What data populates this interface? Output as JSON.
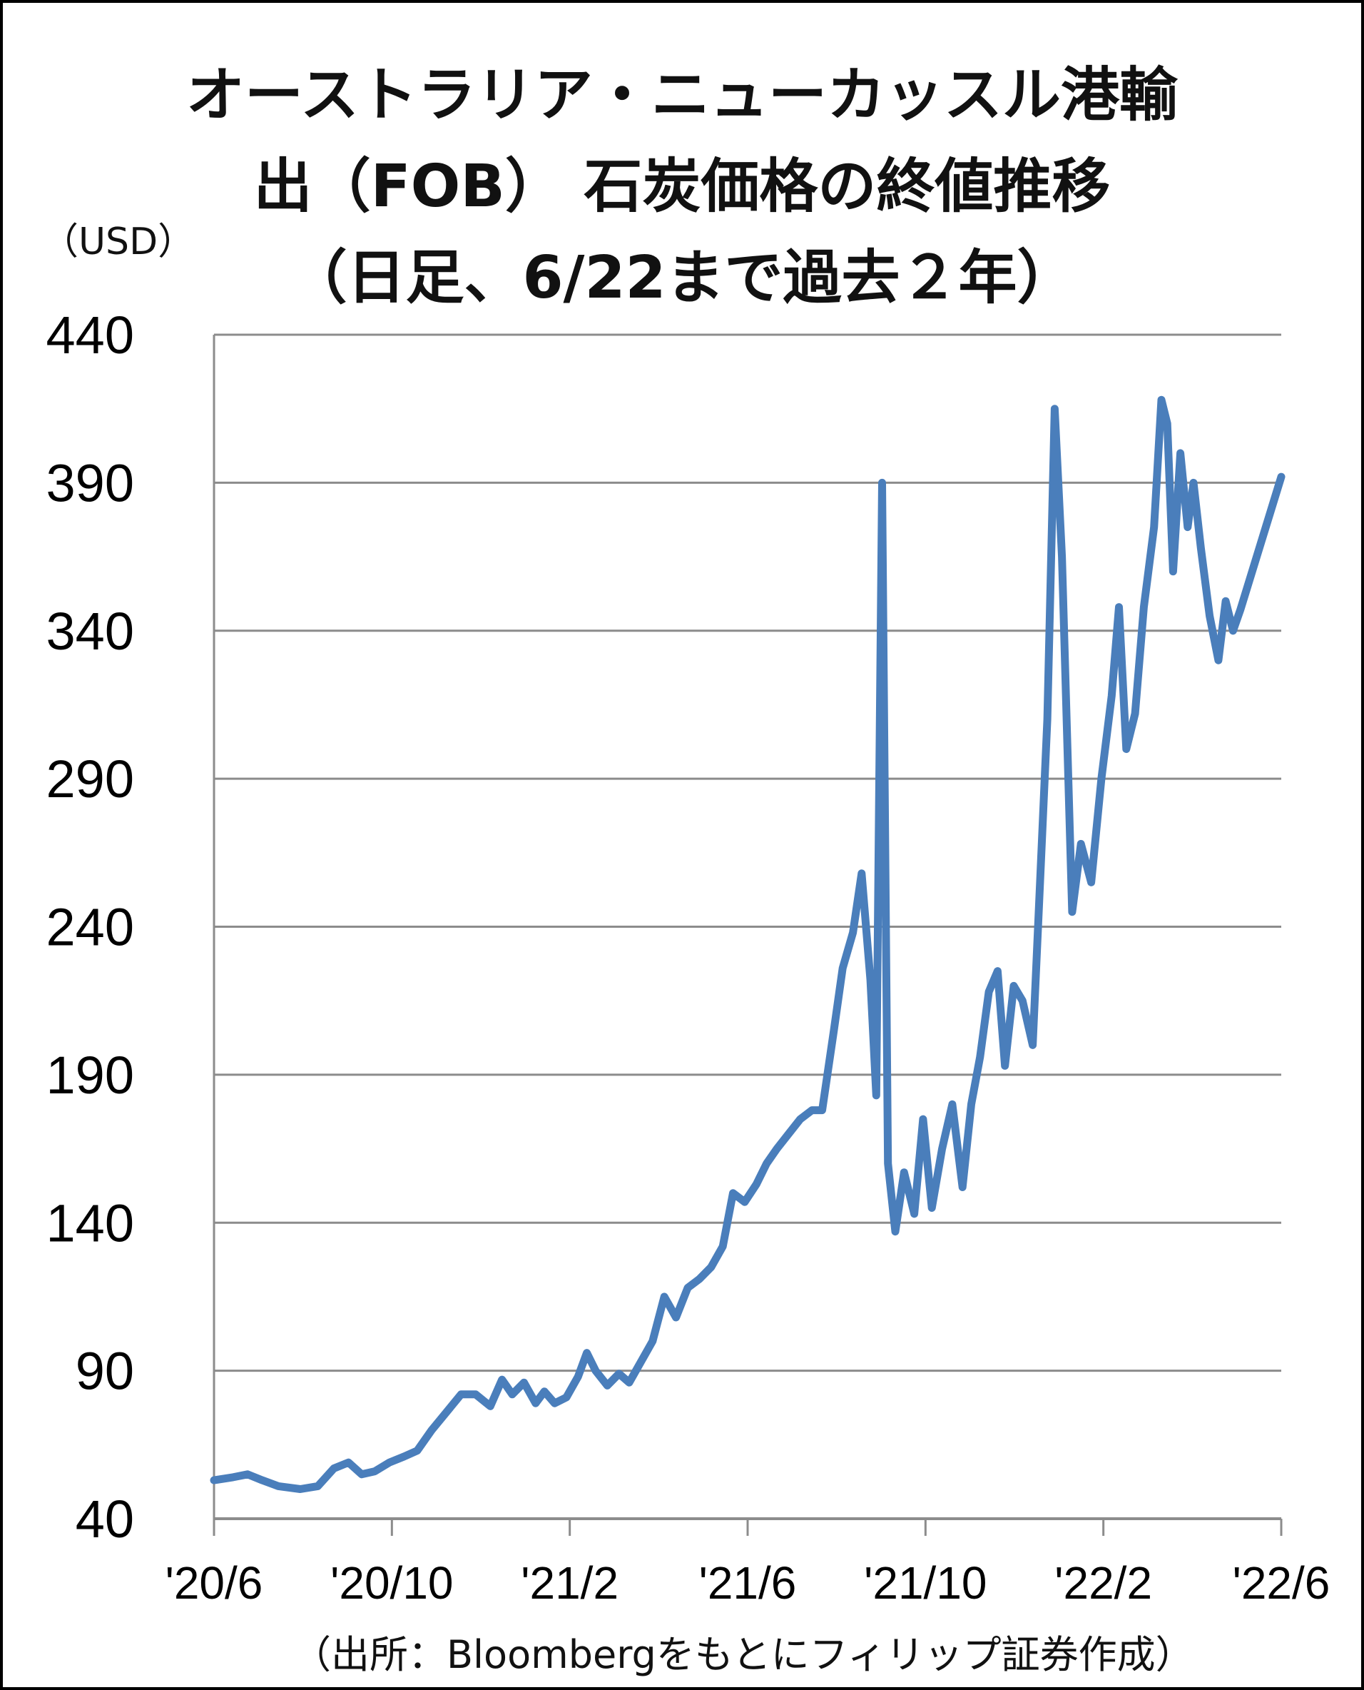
{
  "chart_data": {
    "type": "line",
    "title_lines": [
      "オーストラリア・ニューカッスル港輸",
      "出（FOB） 石炭価格の終値推移",
      "（日足、6/22まで過去２年）"
    ],
    "ylabel": "（USD）",
    "source": "（出所：Bloombergをもとにフィリップ証券作成）",
    "ylim": [
      40,
      440
    ],
    "yticks": [
      "440",
      "390",
      "340",
      "290",
      "240",
      "190",
      "140",
      "90",
      "40"
    ],
    "xticks": [
      "'20/6",
      "'20/10",
      "'21/2",
      "'21/6",
      "'21/10",
      "'22/2",
      "'22/6"
    ],
    "x_start": "2020-06-22",
    "x_end": "2022-06-22",
    "grid": true,
    "line_color": "#4a7ebb",
    "series": [
      {
        "points": [
          [
            "2020-06-22",
            53
          ],
          [
            "2020-07-05",
            54
          ],
          [
            "2020-07-15",
            55
          ],
          [
            "2020-07-25",
            53
          ],
          [
            "2020-08-05",
            51
          ],
          [
            "2020-08-20",
            50
          ],
          [
            "2020-09-01",
            51
          ],
          [
            "2020-09-12",
            57
          ],
          [
            "2020-09-22",
            59
          ],
          [
            "2020-10-01",
            55
          ],
          [
            "2020-10-10",
            56
          ],
          [
            "2020-10-20",
            59
          ],
          [
            "2020-10-30",
            61
          ],
          [
            "2020-11-08",
            63
          ],
          [
            "2020-11-18",
            70
          ],
          [
            "2020-11-28",
            76
          ],
          [
            "2020-12-08",
            82
          ],
          [
            "2020-12-18",
            82
          ],
          [
            "2020-12-28",
            78
          ],
          [
            "2021-01-05",
            87
          ],
          [
            "2021-01-12",
            82
          ],
          [
            "2021-01-20",
            86
          ],
          [
            "2021-01-28",
            79
          ],
          [
            "2021-02-03",
            83
          ],
          [
            "2021-02-10",
            79
          ],
          [
            "2021-02-18",
            81
          ],
          [
            "2021-02-26",
            88
          ],
          [
            "2021-03-04",
            96
          ],
          [
            "2021-03-10",
            90
          ],
          [
            "2021-03-18",
            85
          ],
          [
            "2021-03-26",
            89
          ],
          [
            "2021-04-02",
            86
          ],
          [
            "2021-04-10",
            93
          ],
          [
            "2021-04-18",
            100
          ],
          [
            "2021-04-26",
            115
          ],
          [
            "2021-05-04",
            108
          ],
          [
            "2021-05-12",
            118
          ],
          [
            "2021-05-20",
            121
          ],
          [
            "2021-05-28",
            125
          ],
          [
            "2021-06-05",
            132
          ],
          [
            "2021-06-12",
            150
          ],
          [
            "2021-06-20",
            147
          ],
          [
            "2021-06-28",
            153
          ],
          [
            "2021-07-05",
            160
          ],
          [
            "2021-07-12",
            165
          ],
          [
            "2021-07-20",
            170
          ],
          [
            "2021-07-28",
            175
          ],
          [
            "2021-08-05",
            178
          ],
          [
            "2021-08-12",
            178
          ],
          [
            "2021-08-20",
            205
          ],
          [
            "2021-08-26",
            226
          ],
          [
            "2021-09-02",
            238
          ],
          [
            "2021-09-08",
            258
          ],
          [
            "2021-09-14",
            222
          ],
          [
            "2021-09-18",
            183
          ],
          [
            "2021-09-22",
            390
          ],
          [
            "2021-09-26",
            160
          ],
          [
            "2021-10-01",
            137
          ],
          [
            "2021-10-07",
            157
          ],
          [
            "2021-10-14",
            143
          ],
          [
            "2021-10-20",
            175
          ],
          [
            "2021-10-26",
            145
          ],
          [
            "2021-11-02",
            165
          ],
          [
            "2021-11-09",
            180
          ],
          [
            "2021-11-16",
            152
          ],
          [
            "2021-11-22",
            180
          ],
          [
            "2021-11-28",
            196
          ],
          [
            "2021-12-04",
            218
          ],
          [
            "2021-12-10",
            225
          ],
          [
            "2021-12-15",
            193
          ],
          [
            "2021-12-21",
            220
          ],
          [
            "2021-12-27",
            215
          ],
          [
            "2022-01-03",
            200
          ],
          [
            "2022-01-08",
            255
          ],
          [
            "2022-01-13",
            310
          ],
          [
            "2022-01-18",
            415
          ],
          [
            "2022-01-23",
            365
          ],
          [
            "2022-01-30",
            245
          ],
          [
            "2022-02-05",
            268
          ],
          [
            "2022-02-12",
            255
          ],
          [
            "2022-02-19",
            290
          ],
          [
            "2022-02-26",
            318
          ],
          [
            "2022-03-03",
            348
          ],
          [
            "2022-03-08",
            300
          ],
          [
            "2022-03-14",
            312
          ],
          [
            "2022-03-20",
            348
          ],
          [
            "2022-03-27",
            375
          ],
          [
            "2022-04-01",
            418
          ],
          [
            "2022-04-05",
            410
          ],
          [
            "2022-04-09",
            360
          ],
          [
            "2022-04-14",
            400
          ],
          [
            "2022-04-19",
            375
          ],
          [
            "2022-04-23",
            390
          ],
          [
            "2022-04-28",
            368
          ],
          [
            "2022-05-04",
            345
          ],
          [
            "2022-05-10",
            330
          ],
          [
            "2022-05-15",
            350
          ],
          [
            "2022-05-20",
            340
          ],
          [
            "2022-05-25",
            347
          ],
          [
            "2022-06-22",
            392
          ]
        ]
      }
    ]
  }
}
